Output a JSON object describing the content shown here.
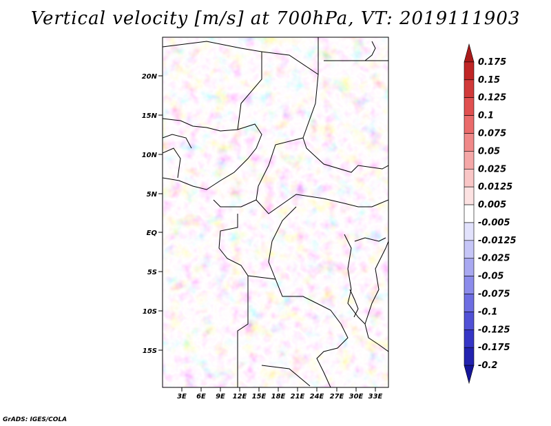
{
  "title": "Vertical velocity [m/s] at 700hPa, VT: 2019111903",
  "credit": "GrADS: IGES/COLA",
  "lat_ticks": [
    "20N",
    "15N",
    "10N",
    "5N",
    "EQ",
    "5S",
    "10S",
    "15S"
  ],
  "lon_ticks": [
    "3E",
    "6E",
    "9E",
    "12E",
    "15E",
    "18E",
    "21E",
    "24E",
    "27E",
    "30E",
    "33E"
  ],
  "colorbar": {
    "labels": [
      "0.175",
      "0.15",
      "0.125",
      "0.1",
      "0.075",
      "0.05",
      "0.025",
      "0.0125",
      "0.005",
      "-0.005",
      "-0.0125",
      "-0.025",
      "-0.05",
      "-0.075",
      "-0.1",
      "-0.125",
      "-0.175",
      "-0.2"
    ],
    "colors": [
      "#aa1b1b",
      "#c02626",
      "#d13a3a",
      "#e05050",
      "#ea6b6b",
      "#f08989",
      "#f5a8a8",
      "#f9c6c6",
      "#fce2e2",
      "#ffffff",
      "#e2e2fc",
      "#c6c6f7",
      "#a9a9f1",
      "#8c8ceb",
      "#6e6ee2",
      "#5151d6",
      "#3636c6",
      "#2323b0",
      "#15159a"
    ]
  },
  "colors": {
    "positive_max": "#aa1b1b",
    "negative_max": "#15159a",
    "boundary": "#000000"
  }
}
